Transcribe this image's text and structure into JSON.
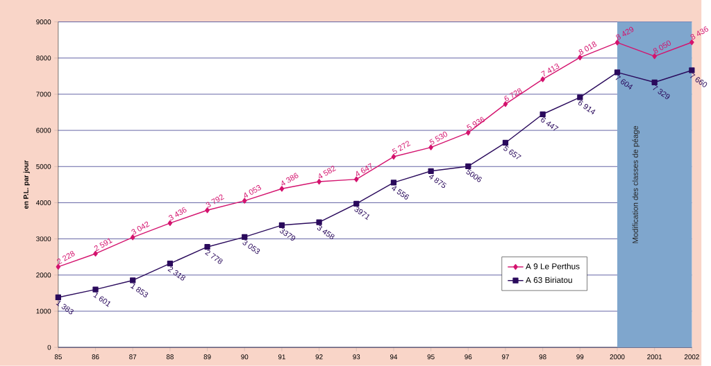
{
  "chart_data": {
    "type": "line",
    "ylabel": "en P.L. par jour",
    "categories": [
      "85",
      "86",
      "87",
      "88",
      "89",
      "90",
      "91",
      "92",
      "93",
      "94",
      "95",
      "96",
      "97",
      "98",
      "99",
      "2000",
      "2001",
      "2002"
    ],
    "series": [
      {
        "name": "A 9 Le Perthus",
        "color": "#d4136e",
        "marker": "diamond",
        "values": [
          2228,
          2591,
          3042,
          3436,
          3792,
          4053,
          4386,
          4582,
          4647,
          5272,
          5530,
          5936,
          6728,
          7413,
          8018,
          8429,
          8050,
          8436
        ],
        "value_labels": [
          "2 228",
          "2 591",
          "3 042",
          "3 436",
          "3 792",
          "4 053",
          "4 386",
          "4 582",
          "4 647",
          "5 272",
          "5 530",
          "5 936",
          "6 728",
          "7 413",
          "8 018",
          "8 429",
          "8 050",
          "8 436"
        ]
      },
      {
        "name": "A 63 Biriatou",
        "color": "#2a0a5c",
        "marker": "square",
        "values": [
          1383,
          1601,
          1853,
          2318,
          2778,
          3053,
          3379,
          3458,
          3971,
          4556,
          4875,
          5006,
          5657,
          6447,
          6914,
          7604,
          7329,
          7660
        ],
        "value_labels": [
          "1 383",
          "1 601",
          "1 853",
          "2 318",
          "2 778",
          "3 053",
          "3379",
          "3 458",
          "3971",
          "4 556",
          "4 875",
          "5006",
          "5 657",
          "6 447",
          "6 914",
          "7 604",
          "7 329",
          "7 660"
        ]
      }
    ],
    "ylim": [
      0,
      9000
    ],
    "yticks": [
      0,
      1000,
      2000,
      3000,
      4000,
      5000,
      6000,
      7000,
      8000,
      9000
    ],
    "bands": [
      {
        "axis": "x",
        "from": "2000",
        "to": "2002",
        "label": "Modification des classes de péage",
        "color": "#7fa6cd"
      }
    ],
    "grid": "y",
    "legend": "bottom right",
    "line_style": "solid"
  }
}
